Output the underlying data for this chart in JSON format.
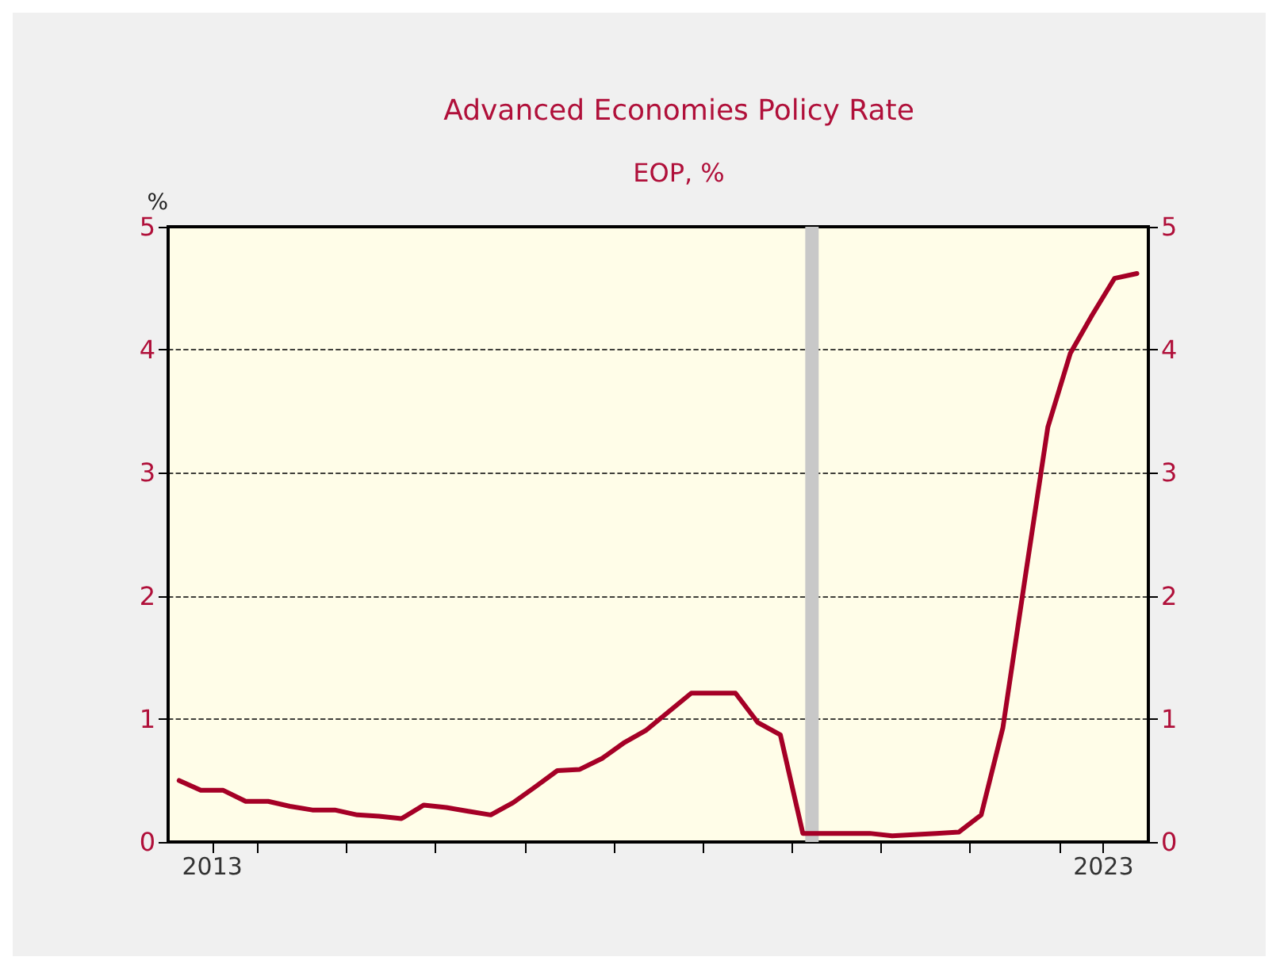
{
  "chart_data": {
    "type": "line",
    "title": "Advanced Economies Policy Rate",
    "subtitle": "EOP, %",
    "ylabel": "%",
    "x": [
      "2013-02-15",
      "2013-05-15",
      "2013-08-15",
      "2013-11-15",
      "2014-02-15",
      "2014-05-15",
      "2014-08-15",
      "2014-11-15",
      "2015-02-15",
      "2015-05-15",
      "2015-08-15",
      "2015-11-15",
      "2016-02-15",
      "2016-05-15",
      "2016-08-15",
      "2016-11-15",
      "2017-02-15",
      "2017-05-15",
      "2017-08-15",
      "2017-11-15",
      "2018-02-15",
      "2018-05-15",
      "2018-08-15",
      "2018-11-15",
      "2019-02-15",
      "2019-05-15",
      "2019-08-15",
      "2019-11-15",
      "2020-02-15",
      "2020-05-15",
      "2020-08-15",
      "2020-11-15",
      "2021-02-15",
      "2021-05-15",
      "2021-08-15",
      "2021-11-15",
      "2022-02-15",
      "2022-05-15",
      "2022-08-15",
      "2022-11-15",
      "2023-02-15",
      "2023-05-15",
      "2023-08-15",
      "2023-11-15"
    ],
    "series": [
      {
        "color": "#a50026",
        "values": [
          0.5,
          0.42,
          0.42,
          0.33,
          0.33,
          0.29,
          0.26,
          0.26,
          0.22,
          0.21,
          0.19,
          0.3,
          0.28,
          0.25,
          0.22,
          0.32,
          0.45,
          0.58,
          0.59,
          0.68,
          0.81,
          0.91,
          1.06,
          1.21,
          1.21,
          1.21,
          0.97,
          0.87,
          0.07,
          0.07,
          0.07,
          0.07,
          0.05,
          0.06,
          0.07,
          0.08,
          0.22,
          0.93,
          2.16,
          3.37,
          3.97,
          4.28,
          4.58,
          4.62
        ]
      }
    ],
    "xlim": [
      "2013-01-01",
      "2024-01-01"
    ],
    "xticks": [
      {
        "value": "2013-07-01",
        "label": "2013"
      },
      {
        "value": "2014-01-01",
        "label": null
      },
      {
        "value": "2015-01-01",
        "label": null
      },
      {
        "value": "2016-01-01",
        "label": null
      },
      {
        "value": "2017-01-01",
        "label": null
      },
      {
        "value": "2018-01-01",
        "label": null
      },
      {
        "value": "2019-01-01",
        "label": null
      },
      {
        "value": "2020-01-01",
        "label": null
      },
      {
        "value": "2021-01-01",
        "label": null
      },
      {
        "value": "2022-01-01",
        "label": null
      },
      {
        "value": "2023-01-01",
        "label": null
      },
      {
        "value": "2023-07-01",
        "label": "2023"
      }
    ],
    "ylim": [
      0,
      5
    ],
    "yticks": [
      0,
      1,
      2,
      3,
      4,
      5
    ],
    "y2lim": [
      0,
      5
    ],
    "y2ticks": [
      0,
      1,
      2,
      3,
      4,
      5
    ],
    "bands": [
      {
        "axis": "x",
        "from": "2020-02-25",
        "to": "2020-04-20",
        "color": "#c8c8c8"
      }
    ],
    "grid": "y",
    "line_style": "solid",
    "marker": "none"
  }
}
